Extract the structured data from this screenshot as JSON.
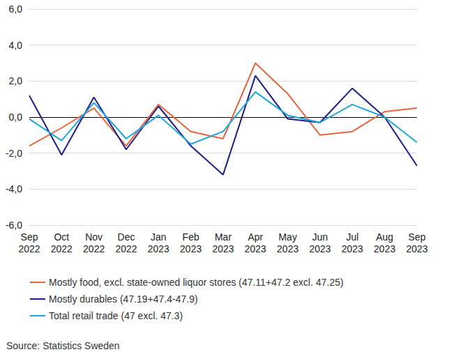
{
  "chart_data": {
    "type": "line",
    "categories": [
      "Sep\n2022",
      "Oct\n2022",
      "Nov\n2022",
      "Dec\n2022",
      "Jan\n2023",
      "Feb\n2023",
      "Mar\n2023",
      "Apr\n2023",
      "May\n2023",
      "Jun\n2023",
      "Jul\n2023",
      "Aug\n2023",
      "Sep\n2023"
    ],
    "series": [
      {
        "name": "Mostly food, excl. state-owned liquor stores (47.11+47.2 excl. 47.25)",
        "color": "#e8643c",
        "values": [
          -1.6,
          -0.6,
          0.5,
          -1.6,
          0.7,
          -0.8,
          -1.2,
          3.0,
          1.3,
          -1.0,
          -0.8,
          0.3,
          0.5
        ]
      },
      {
        "name": "Mostly durables (47.19+47.4-47.9)",
        "color": "#1c1c8a",
        "values": [
          1.2,
          -2.1,
          1.1,
          -1.8,
          0.6,
          -1.6,
          -3.2,
          2.3,
          -0.1,
          -0.3,
          1.6,
          0.0,
          -2.7
        ]
      },
      {
        "name": "Total retail trade (47 excl. 47.3)",
        "color": "#1aa7e0",
        "values": [
          -0.1,
          -1.3,
          0.8,
          -1.2,
          0.1,
          -1.5,
          -0.8,
          1.4,
          0.1,
          -0.3,
          0.7,
          0.0,
          -1.4
        ]
      }
    ],
    "ylim": [
      -6,
      6
    ],
    "yticks": [
      {
        "value": -6,
        "label": "-6,0"
      },
      {
        "value": -4,
        "label": "-4,0"
      },
      {
        "value": -2,
        "label": "-2,0"
      },
      {
        "value": 0,
        "label": "0,0"
      },
      {
        "value": 2,
        "label": "2,0"
      },
      {
        "value": 4,
        "label": "4,0"
      },
      {
        "value": 6,
        "label": "6,0"
      }
    ],
    "grid": true,
    "legend": "bottom-left",
    "source": "Source: Statistics Sweden"
  }
}
